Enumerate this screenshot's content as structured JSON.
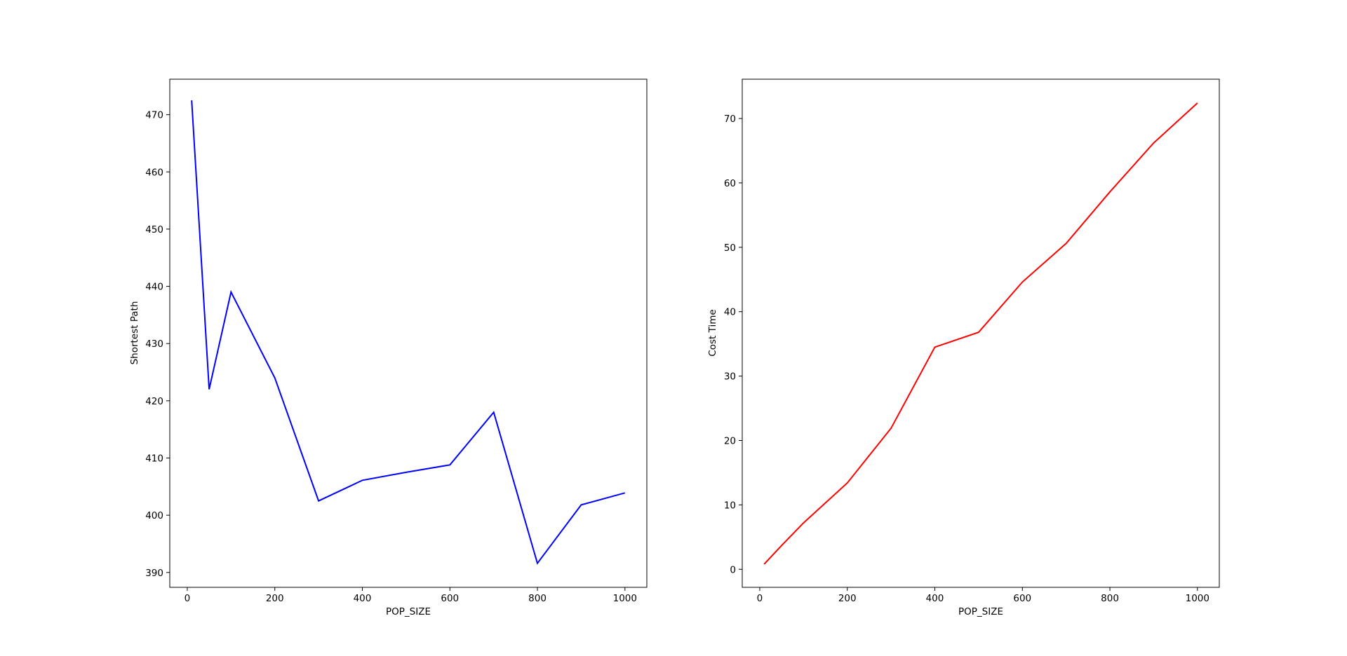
{
  "chart_data": [
    {
      "type": "line",
      "title": "",
      "xlabel": "POP_SIZE",
      "ylabel": "Shortest Path",
      "xlim": [
        -40,
        1050
      ],
      "ylim": [
        387.4,
        476.2
      ],
      "x_ticks": [
        0,
        200,
        400,
        600,
        800,
        1000
      ],
      "y_ticks": [
        390,
        400,
        410,
        420,
        430,
        440,
        450,
        460,
        470
      ],
      "grid": false,
      "series": [
        {
          "color": "#0000ff",
          "x": [
            10,
            50,
            100,
            200,
            300,
            400,
            500,
            600,
            700,
            800,
            900,
            1000
          ],
          "y": [
            472.5,
            422.0,
            439.0,
            424.0,
            402.5,
            406.1,
            407.5,
            408.8,
            418.0,
            391.6,
            401.8,
            403.9
          ]
        }
      ]
    },
    {
      "type": "line",
      "title": "",
      "xlabel": "POP_SIZE",
      "ylabel": "Cost Time",
      "xlim": [
        -40,
        1050
      ],
      "ylim": [
        -2.8,
        76.1
      ],
      "x_ticks": [
        0,
        200,
        400,
        600,
        800,
        1000
      ],
      "y_ticks": [
        0,
        10,
        20,
        30,
        40,
        50,
        60,
        70
      ],
      "grid": false,
      "series": [
        {
          "color": "#ff0000",
          "x": [
            10,
            50,
            100,
            200,
            300,
            400,
            500,
            600,
            700,
            800,
            900,
            1000
          ],
          "y": [
            0.8,
            3.7,
            7.2,
            13.4,
            21.9,
            34.5,
            36.8,
            44.6,
            50.6,
            58.6,
            66.2,
            72.4
          ]
        }
      ]
    }
  ]
}
